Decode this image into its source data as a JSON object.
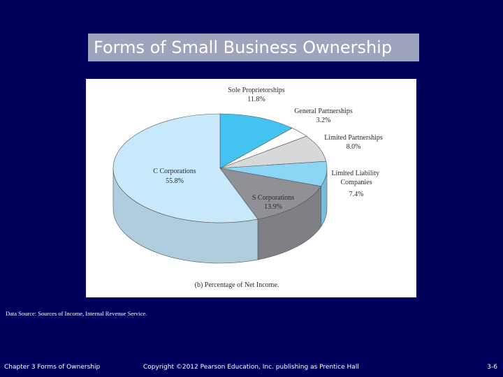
{
  "slide": {
    "title": "Forms of Small Business Ownership",
    "source": "Data Source: Sources of Income, Internal Revenue Service.",
    "footer_left": "Chapter 3 Forms of Ownership",
    "footer_center": "Copyright ©2012 Pearson Education, Inc. publishing as Prentice Hall",
    "footer_right": "3-6"
  },
  "chart_data": {
    "type": "pie",
    "title": "(b) Percentage of Net Income.",
    "slices": [
      {
        "label": "Sole Proprietorships",
        "value": 11.8,
        "value_label": "11.8%",
        "color": "#42c3f2"
      },
      {
        "label": "General Partnerships",
        "value": 3.2,
        "value_label": "3.2%",
        "color": "#ffffff"
      },
      {
        "label": "Limited Partnerships",
        "value": 8.0,
        "value_label": "8.0%",
        "color": "#d7d8da"
      },
      {
        "label": "Limited Liability Companies",
        "value": 7.4,
        "value_label": "7.4%",
        "color": "#8bd6f5"
      },
      {
        "label": "S Corporations",
        "value": 13.9,
        "value_label": "13.9%",
        "color": "#8f9197"
      },
      {
        "label": "C Corporations",
        "value": 55.8,
        "value_label": "55.8%",
        "color": "#c7e9fb"
      }
    ]
  }
}
